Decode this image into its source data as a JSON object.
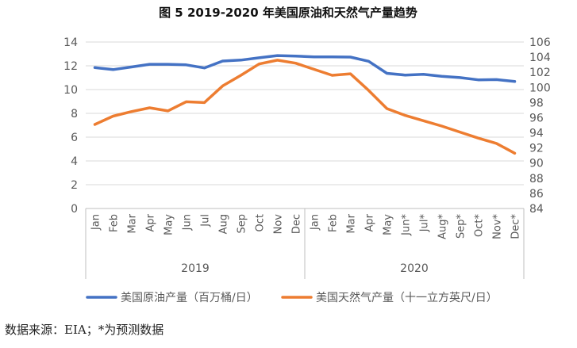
{
  "chart_data": {
    "type": "line",
    "title": "图  5 2019-2020 年美国原油和天然气产量趋势",
    "categories": [
      "Jan",
      "Feb",
      "Mar",
      "Apr",
      "May",
      "Jun",
      "Jul",
      "Aug",
      "Sep",
      "Oct",
      "Nov",
      "Dec",
      "Jan",
      "Feb",
      "Mar",
      "Apr",
      "May",
      "Jun*",
      "Jul*",
      "Aug*",
      "Sep*",
      "Oct*",
      "Nov*",
      "Dec*"
    ],
    "year_groups": [
      {
        "label": "2019",
        "start": 0,
        "end": 11
      },
      {
        "label": "2020",
        "start": 12,
        "end": 23
      }
    ],
    "left_axis": {
      "ylim": [
        0,
        14
      ],
      "ticks": [
        "0",
        "2",
        "4",
        "6",
        "8",
        "10",
        "12",
        "14"
      ]
    },
    "right_axis": {
      "ylim": [
        84,
        106
      ],
      "ticks": [
        "84",
        "86",
        "88",
        "90",
        "92",
        "94",
        "96",
        "98",
        "100",
        "102",
        "104",
        "106"
      ]
    },
    "series": [
      {
        "name": "美国原油产量（百万桶/日）",
        "axis": "left",
        "color": "#4472C4",
        "values": [
          11.85,
          11.68,
          11.9,
          12.13,
          12.13,
          12.08,
          11.82,
          12.4,
          12.48,
          12.67,
          12.86,
          12.82,
          12.75,
          12.75,
          12.73,
          12.38,
          11.37,
          11.22,
          11.28,
          11.12,
          11.01,
          10.82,
          10.84,
          10.68
        ]
      },
      {
        "name": "美国天然气产量（十一立方英尺/日）",
        "axis": "right",
        "color": "#ED7D31",
        "values": [
          95.1,
          96.2,
          96.8,
          97.3,
          96.9,
          98.1,
          98.0,
          100.2,
          101.6,
          103.1,
          103.6,
          103.2,
          102.4,
          101.6,
          101.8,
          99.6,
          97.2,
          96.3,
          95.6,
          94.9,
          94.1,
          93.3,
          92.6,
          91.3
        ]
      }
    ],
    "grid": true,
    "legend_position": "bottom"
  },
  "footer": {
    "source_text": "数据来源：EIA；*为预测数据"
  }
}
